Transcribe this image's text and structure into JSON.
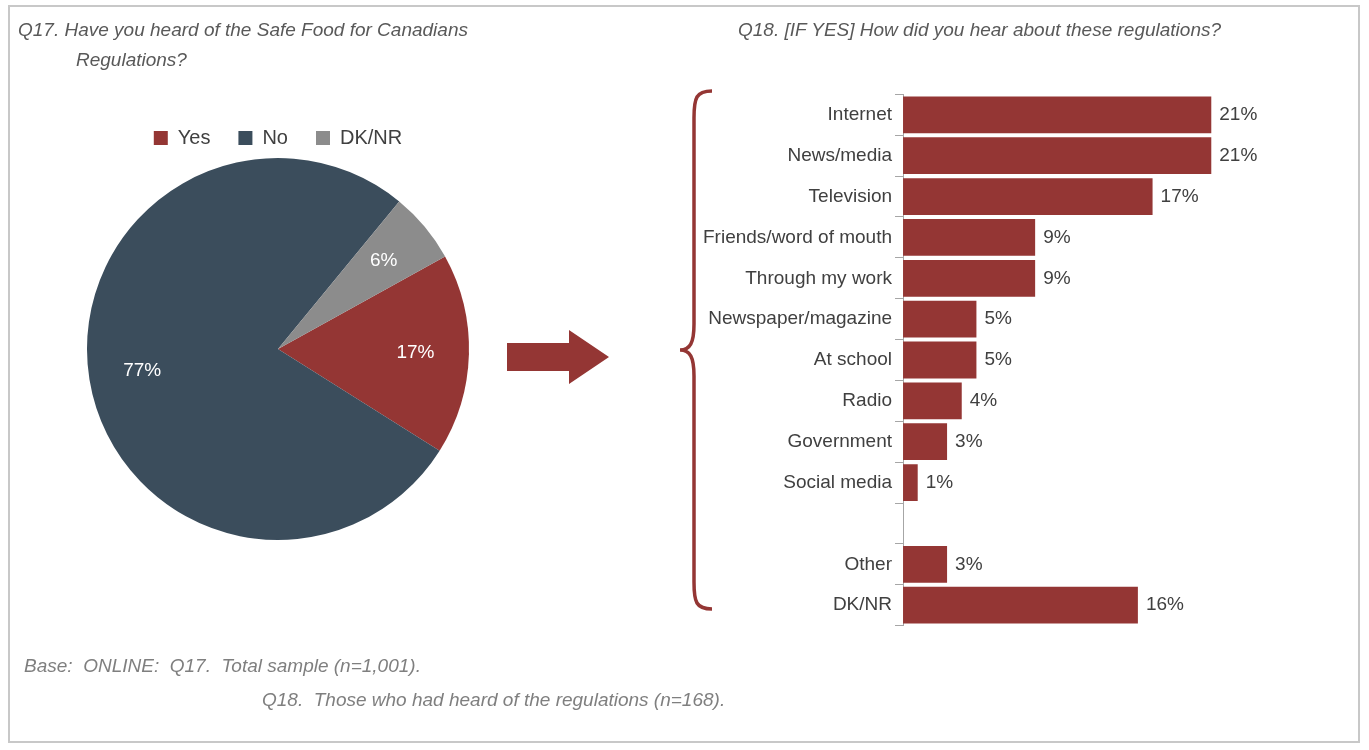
{
  "chart_data": [
    {
      "type": "pie",
      "title": "Q17.  Have you heard of the Safe Food for Canadians Regulations?",
      "categories": [
        "Yes",
        "No",
        "DK/NR"
      ],
      "values": [
        17,
        77,
        6
      ],
      "colors": [
        "#943634",
        "#3b4d5c",
        "#8c8c8c"
      ],
      "value_labels": [
        "17%",
        "77%",
        "6%"
      ],
      "legend": "top",
      "annotations": [
        "Base:  ONLINE:  Q17.  Total sample (n=1,001).",
        "Q18.  Those who had heard of the regulations (n=168)."
      ]
    },
    {
      "type": "bar",
      "orientation": "horizontal",
      "title": "Q18.  [IF YES]  How did you hear about these regulations?",
      "categories": [
        "Internet",
        "News/media",
        "Television",
        "Friends/word of mouth",
        "Through my work",
        "Newspaper/magazine",
        "At school",
        "Radio",
        "Government",
        "Social media",
        null,
        "Other",
        "DK/NR"
      ],
      "values": [
        21,
        21,
        17,
        9,
        9,
        5,
        5,
        4,
        3,
        1,
        null,
        3,
        16
      ],
      "color": "#943634",
      "value_labels": [
        "21%",
        "21%",
        "17%",
        "9%",
        "9%",
        "5%",
        "5%",
        "4%",
        "3%",
        "1%",
        null,
        "3%",
        "16%"
      ],
      "legend": false
    }
  ]
}
